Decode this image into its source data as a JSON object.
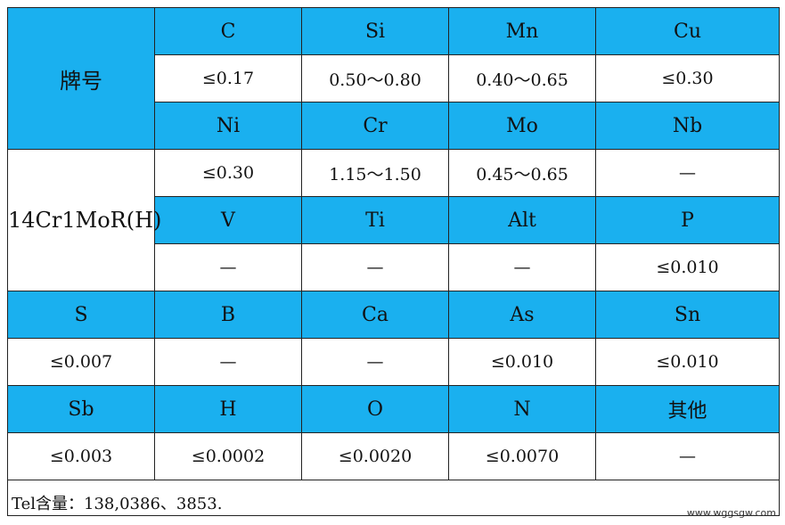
{
  "grade_label": "牌号",
  "grade_name": "14Cr1MoR(H)",
  "rows": [
    {
      "type": "hdr",
      "cells": [
        "C",
        "Si",
        "Mn",
        "Cu"
      ]
    },
    {
      "type": "val",
      "cells": [
        "≤0.17",
        "0.50～0.80",
        "0.40～0.65",
        "≤0.30"
      ]
    },
    {
      "type": "hdr",
      "cells": [
        "Ni",
        "Cr",
        "Mo",
        "Nb"
      ]
    },
    {
      "type": "val",
      "cells": [
        "≤0.30",
        "1.15～1.50",
        "0.45～0.65",
        "—"
      ]
    },
    {
      "type": "hdr",
      "cells": [
        "V",
        "Ti",
        "Alt",
        "P"
      ]
    },
    {
      "type": "val",
      "cells": [
        "—",
        "—",
        "—",
        "≤0.010"
      ]
    },
    {
      "type": "hdr",
      "cells": [
        "S",
        "B",
        "Ca",
        "As",
        "Sn"
      ]
    },
    {
      "type": "val",
      "cells": [
        "≤0.007",
        "—",
        "—",
        "≤0.010",
        "≤0.010"
      ]
    },
    {
      "type": "hdr",
      "cells": [
        "Sb",
        "H",
        "O",
        "N",
        "其他"
      ]
    },
    {
      "type": "val",
      "cells": [
        "≤0.003",
        "≤0.0002",
        "≤0.0020",
        "≤0.0070",
        "—"
      ]
    }
  ],
  "note": "Tel含量：138,0386、3853.",
  "watermark": "www.wggsgw.com",
  "colors": {
    "header_bg": "#1ab0ef",
    "value_bg": "#ffffff",
    "border": "#222222"
  }
}
